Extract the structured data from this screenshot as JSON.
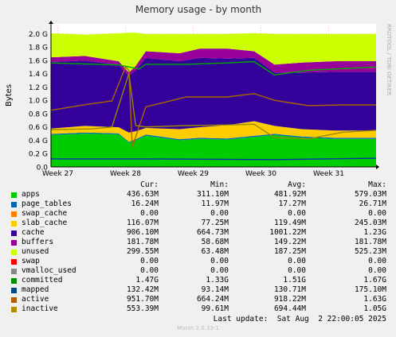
{
  "chart_data": {
    "type": "area",
    "title": "Memory usage - by month",
    "ylabel": "Bytes",
    "side_label": "RRDTOOL / TOBI OETIKER",
    "ylim": [
      0,
      2.147
    ],
    "yticks": [
      {
        "value": 0.0,
        "label": "0.0"
      },
      {
        "value": 0.2,
        "label": "0.2 G"
      },
      {
        "value": 0.4,
        "label": "0.4 G"
      },
      {
        "value": 0.6,
        "label": "0.6 G"
      },
      {
        "value": 0.8,
        "label": "0.8 G"
      },
      {
        "value": 1.0,
        "label": "1.0 G"
      },
      {
        "value": 1.2,
        "label": "1.2 G"
      },
      {
        "value": 1.4,
        "label": "1.4 G"
      },
      {
        "value": 1.6,
        "label": "1.6 G"
      },
      {
        "value": 1.8,
        "label": "1.8 G"
      },
      {
        "value": 2.0,
        "label": "2.0 G"
      }
    ],
    "xticks": [
      {
        "x": 0.7,
        "label": "Week 27"
      },
      {
        "x": 1.7,
        "label": "Week 28"
      },
      {
        "x": 2.7,
        "label": "Week 29"
      },
      {
        "x": 3.7,
        "label": "Week 30"
      },
      {
        "x": 4.7,
        "label": "Week 31"
      }
    ],
    "xlim": [
      0.6,
      5.4
    ],
    "stack_x": [
      0.6,
      1.1,
      1.6,
      1.75,
      1.85,
      2.0,
      2.5,
      2.8,
      3.2,
      3.6,
      3.9,
      4.3,
      4.8,
      5.4
    ],
    "stack": [
      {
        "name": "apps",
        "color": "#00cc00",
        "values": [
          0.48,
          0.5,
          0.49,
          0.36,
          0.4,
          0.47,
          0.4,
          0.42,
          0.41,
          0.45,
          0.48,
          0.44,
          0.42,
          0.42
        ]
      },
      {
        "name": "page_tables",
        "color": "#0066b3",
        "values": [
          0.015,
          0.015,
          0.015,
          0.015,
          0.015,
          0.015,
          0.016,
          0.016,
          0.016,
          0.016,
          0.016,
          0.016,
          0.016,
          0.016
        ]
      },
      {
        "name": "swap_cache",
        "color": "#ff8000",
        "values": [
          0,
          0,
          0,
          0,
          0,
          0,
          0,
          0,
          0,
          0,
          0,
          0,
          0,
          0
        ]
      },
      {
        "name": "slab_cache",
        "color": "#ffcc00",
        "values": [
          0.08,
          0.1,
          0.09,
          0.14,
          0.12,
          0.1,
          0.15,
          0.16,
          0.2,
          0.22,
          0.12,
          0.11,
          0.11,
          0.11
        ]
      },
      {
        "name": "cache",
        "color": "#330099",
        "values": [
          1.0,
          0.98,
          0.94,
          0.85,
          0.92,
          1.05,
          1.02,
          1.04,
          1.0,
          0.95,
          0.8,
          0.85,
          0.88,
          0.88
        ]
      },
      {
        "name": "buffers",
        "color": "#990099",
        "values": [
          0.07,
          0.07,
          0.05,
          0.05,
          0.06,
          0.1,
          0.12,
          0.14,
          0.15,
          0.1,
          0.12,
          0.15,
          0.16,
          0.16
        ]
      },
      {
        "name": "unused",
        "color": "#ccff00",
        "values": [
          0.36,
          0.32,
          0.42,
          0.6,
          0.5,
          0.26,
          0.29,
          0.22,
          0.22,
          0.27,
          0.46,
          0.43,
          0.41,
          0.41
        ]
      }
    ],
    "lines": [
      {
        "name": "committed",
        "color": "#00aa00",
        "x": [
          0.6,
          1.6,
          1.75,
          1.9,
          2.0,
          2.6,
          3.2,
          3.6,
          3.9,
          4.4,
          5.4
        ],
        "values": [
          1.56,
          1.53,
          1.5,
          1.47,
          1.54,
          1.54,
          1.56,
          1.58,
          1.38,
          1.45,
          1.5
        ]
      },
      {
        "name": "mapped",
        "color": "#0033aa",
        "x": [
          0.6,
          2.0,
          3.9,
          5.4
        ],
        "values": [
          0.12,
          0.12,
          0.11,
          0.13
        ]
      },
      {
        "name": "active",
        "color": "#aa6600",
        "x": [
          0.6,
          1.2,
          1.5,
          1.7,
          1.75,
          1.8,
          2.0,
          2.6,
          3.2,
          3.6,
          3.9,
          4.4,
          4.9,
          5.4
        ],
        "values": [
          0.85,
          0.95,
          0.99,
          1.5,
          1.45,
          0.3,
          0.9,
          1.05,
          1.05,
          1.1,
          1.0,
          0.92,
          0.93,
          0.93
        ]
      },
      {
        "name": "inactive",
        "color": "#998800",
        "x": [
          0.6,
          1.2,
          1.5,
          1.75,
          1.85,
          2.0,
          2.6,
          3.2,
          3.6,
          3.9,
          4.4,
          4.9,
          5.4
        ],
        "values": [
          0.56,
          0.57,
          0.6,
          1.4,
          0.62,
          0.6,
          0.62,
          0.63,
          0.64,
          0.44,
          0.42,
          0.52,
          0.55
        ]
      }
    ],
    "legend": {
      "headers": [
        "Cur:",
        "Min:",
        "Avg:",
        "Max:"
      ],
      "rows": [
        {
          "name": "apps",
          "color": "#00cc00",
          "cur": "436.63M",
          "min": "311.10M",
          "avg": "481.92M",
          "max": "579.03M"
        },
        {
          "name": "page_tables",
          "color": "#0066b3",
          "cur": "16.24M",
          "min": "11.97M",
          "avg": "17.27M",
          "max": "26.71M"
        },
        {
          "name": "swap_cache",
          "color": "#ff8000",
          "cur": "0.00",
          "min": "0.00",
          "avg": "0.00",
          "max": "0.00"
        },
        {
          "name": "slab_cache",
          "color": "#ffcc00",
          "cur": "116.07M",
          "min": "77.25M",
          "avg": "119.49M",
          "max": "245.03M"
        },
        {
          "name": "cache",
          "color": "#330099",
          "cur": "906.10M",
          "min": "664.73M",
          "avg": "1001.22M",
          "max": "1.23G"
        },
        {
          "name": "buffers",
          "color": "#990099",
          "cur": "181.78M",
          "min": "58.68M",
          "avg": "149.22M",
          "max": "181.78M"
        },
        {
          "name": "unused",
          "color": "#ccff00",
          "cur": "299.55M",
          "min": "63.48M",
          "avg": "187.25M",
          "max": "525.23M"
        },
        {
          "name": "swap",
          "color": "#ff0000",
          "cur": "0.00",
          "min": "0.00",
          "avg": "0.00",
          "max": "0.00"
        },
        {
          "name": "vmalloc_used",
          "color": "#888888",
          "cur": "0.00",
          "min": "0.00",
          "avg": "0.00",
          "max": "0.00"
        },
        {
          "name": "committed",
          "color": "#008f00",
          "cur": "1.47G",
          "min": "1.33G",
          "avg": "1.51G",
          "max": "1.67G"
        },
        {
          "name": "mapped",
          "color": "#00487d",
          "cur": "132.42M",
          "min": "93.14M",
          "avg": "130.71M",
          "max": "175.10M"
        },
        {
          "name": "active",
          "color": "#b35a00",
          "cur": "951.70M",
          "min": "664.24M",
          "avg": "918.22M",
          "max": "1.63G"
        },
        {
          "name": "inactive",
          "color": "#b38f00",
          "cur": "553.39M",
          "min": "99.61M",
          "avg": "694.44M",
          "max": "1.05G"
        }
      ]
    },
    "last_update": "Last update:  Sat Aug  2 22:00:05 2025",
    "footer": "Munin 2.0.33-1"
  }
}
